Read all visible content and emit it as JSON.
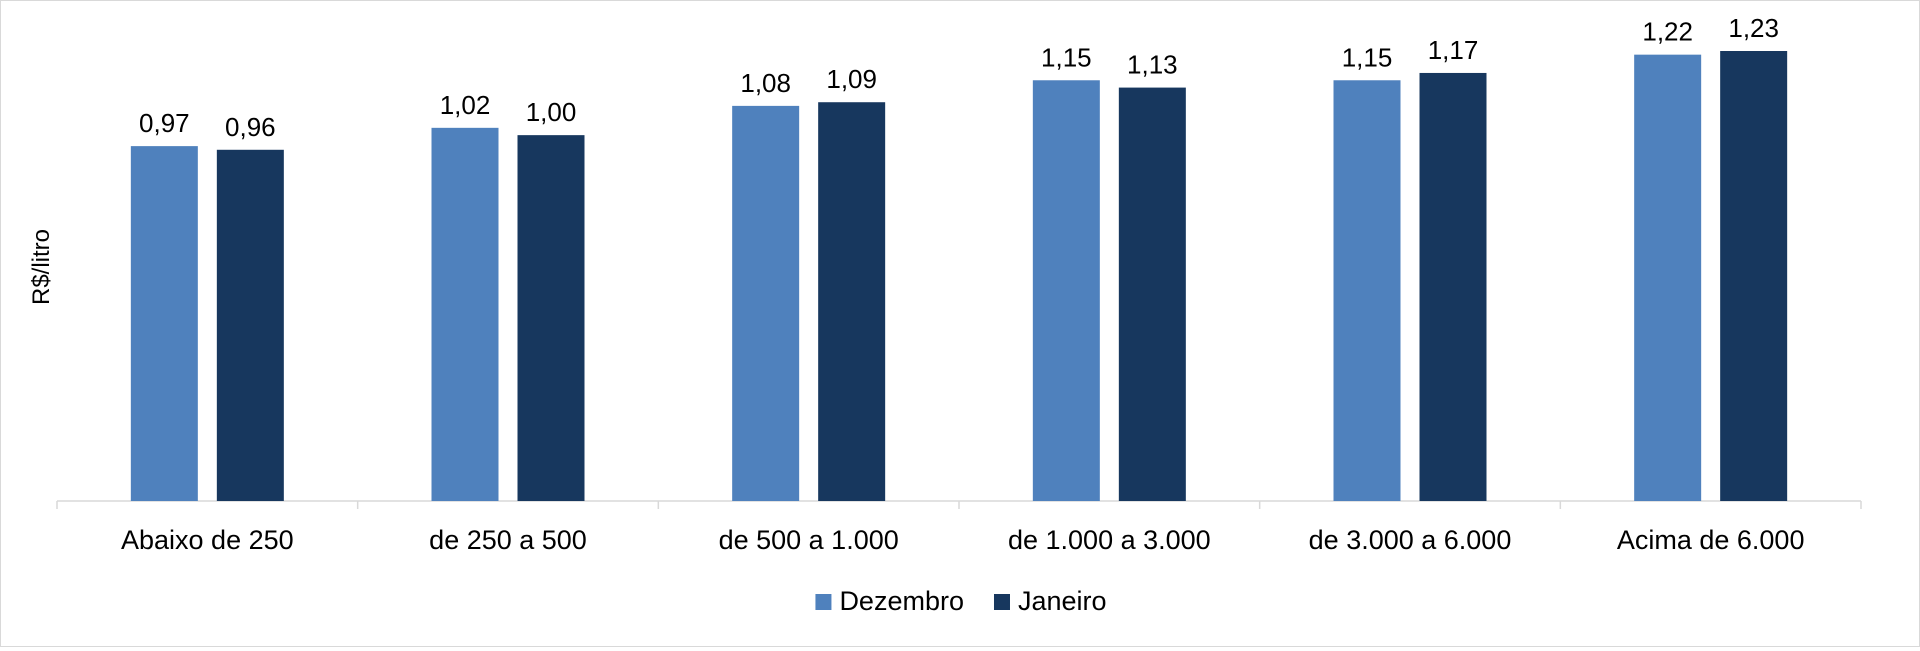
{
  "chart_data": {
    "type": "bar",
    "title": "",
    "xlabel": "",
    "ylabel": "R$/litro",
    "ylim": [
      0,
      1.23
    ],
    "grid": false,
    "legend_position": "bottom",
    "categories": [
      "Abaixo de 250",
      "de 250 a 500",
      "de 500 a 1.000",
      "de 1.000 a 3.000",
      "de 3.000 a 6.000",
      "Acima de 6.000"
    ],
    "series": [
      {
        "name": "Dezembro",
        "color": "#4f81bd",
        "values": [
          0.97,
          1.02,
          1.08,
          1.15,
          1.15,
          1.22
        ],
        "labels": [
          "0,97",
          "1,02",
          "1,08",
          "1,15",
          "1,15",
          "1,22"
        ]
      },
      {
        "name": "Janeiro",
        "color": "#17375e",
        "values": [
          0.96,
          1.0,
          1.09,
          1.13,
          1.17,
          1.23
        ],
        "labels": [
          "0,96",
          "1,00",
          "1,09",
          "1,13",
          "1,17",
          "1,23"
        ]
      }
    ]
  }
}
